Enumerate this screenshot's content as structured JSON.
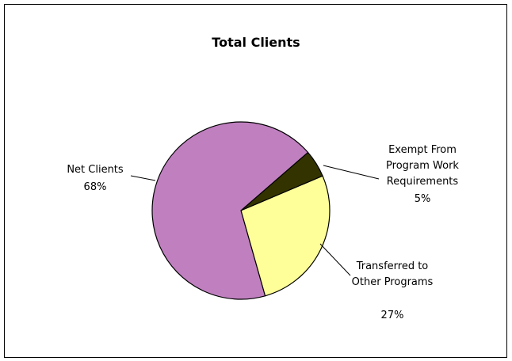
{
  "chart_data": {
    "type": "pie",
    "title": "Total Clients",
    "categories": [
      "Exempt From Program Work Requirements",
      "Transferred to Other Programs",
      "Net Clients"
    ],
    "values": [
      5,
      27,
      68
    ],
    "value_labels": [
      "5%",
      "27%",
      "68%"
    ],
    "colors": [
      "#333300",
      "#ffff99",
      "#c080c0"
    ]
  }
}
